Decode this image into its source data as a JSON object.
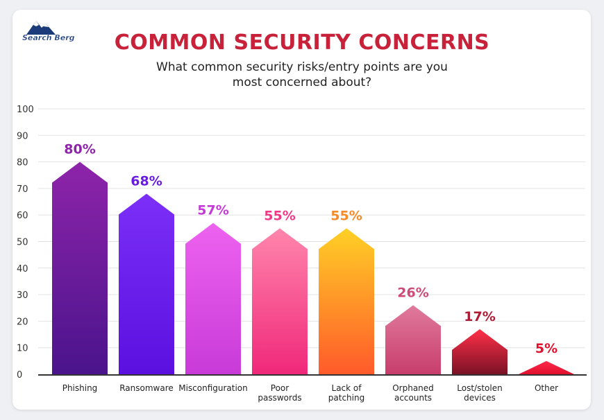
{
  "brand": {
    "logo_text": "Search Berg"
  },
  "chart_data": {
    "type": "bar",
    "title": "COMMON SECURITY CONCERNS",
    "subtitle": "What common security risks/entry points are you most concerned about?",
    "ylim": [
      0,
      100
    ],
    "y_ticks": [
      "0",
      "10",
      "20",
      "30",
      "40",
      "50",
      "60",
      "70",
      "80",
      "90",
      "100"
    ],
    "grid": true,
    "categories": [
      [
        "Phishing"
      ],
      [
        "Ransomware"
      ],
      [
        "Misconfiguration"
      ],
      [
        "Poor",
        "passwords"
      ],
      [
        "Lack of",
        "patching"
      ],
      [
        "Orphaned",
        "accounts"
      ],
      [
        "Lost/stolen",
        "devices"
      ],
      [
        "Other"
      ]
    ],
    "values": [
      80,
      68,
      57,
      55,
      55,
      26,
      17,
      5
    ],
    "labels": [
      "80%",
      "68%",
      "57%",
      "55%",
      "55%",
      "26%",
      "17%",
      "5%"
    ],
    "colors": [
      {
        "top": "#8e24aa",
        "bottom": "#4a148c",
        "label": "#8e24aa"
      },
      {
        "top": "#7b2ff7",
        "bottom": "#5b10e0",
        "label": "#6a1be0"
      },
      {
        "top": "#ee62f0",
        "bottom": "#c83bd8",
        "label": "#c43ad6"
      },
      {
        "top": "#ff86ac",
        "bottom": "#f0287a",
        "label": "#ee3a86"
      },
      {
        "top": "#ffd026",
        "bottom": "#ff5a2a",
        "label": "#f58a2a"
      },
      {
        "top": "#e07a9c",
        "bottom": "#c83e6c",
        "label": "#cc4a77"
      },
      {
        "top": "#ff3048",
        "bottom": "#7a1226",
        "label": "#b01a36"
      },
      {
        "top": "#ff2a4a",
        "bottom": "#e0102e",
        "label": "#e0102e"
      }
    ],
    "axis_color": "#333333",
    "grid_color": "#e3e3e3"
  }
}
